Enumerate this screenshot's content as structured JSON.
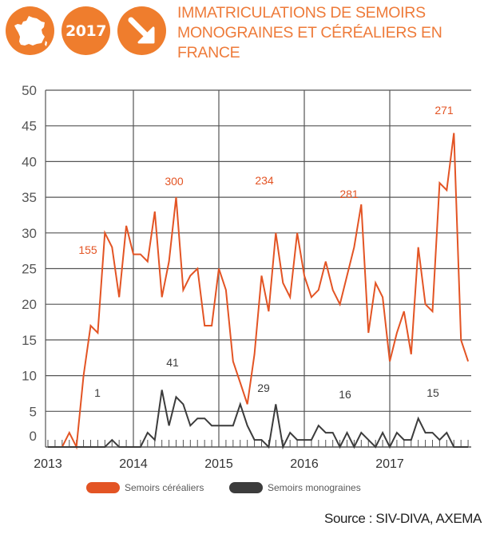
{
  "header": {
    "year_badge": "2017",
    "title": "IMMATRICULATIONS DE SEMOIRS MONOGRAINES ET CÉRÉALIERS EN FRANCE",
    "icons": [
      "france-map-icon",
      "trend-down-arrow-icon"
    ]
  },
  "colors": {
    "accent": "#ef7d2d",
    "cerealiers": "#e35424",
    "monograines": "#3c3c3c",
    "grid": "#555555"
  },
  "legend": {
    "items": [
      {
        "label": "Semoirs céréaliers",
        "color": "#e35424"
      },
      {
        "label": "Semoirs monograines",
        "color": "#3c3c3c"
      }
    ]
  },
  "source": "Source : SIV-DIVA, AXEMA",
  "chart_data": {
    "type": "line",
    "title": "IMMATRICULATIONS DE SEMOIRS MONOGRAINES ET CÉRÉALIERS EN FRANCE",
    "xlabel": "",
    "ylabel": "",
    "ylim": [
      0,
      50
    ],
    "yticks": [
      0,
      5,
      10,
      15,
      20,
      25,
      30,
      35,
      40,
      45,
      50
    ],
    "xticks": [
      "2013",
      "2014",
      "2015",
      "2016",
      "2017"
    ],
    "x_unit": "month",
    "x_start": "2013-01",
    "grid": true,
    "legend_position": "bottom",
    "series": [
      {
        "name": "Semoirs céréaliers",
        "color": "#e35424",
        "values": [
          0,
          0,
          0,
          2,
          0,
          10,
          17,
          16,
          30,
          28,
          21,
          31,
          27,
          27,
          26,
          33,
          21,
          26,
          35,
          22,
          24,
          25,
          17,
          17,
          25,
          22,
          12,
          9,
          6,
          13,
          24,
          19,
          30,
          23,
          21,
          30,
          24,
          21,
          22,
          26,
          22,
          20,
          24,
          28,
          34,
          16,
          23,
          21,
          12,
          16,
          19,
          13,
          28,
          20,
          19,
          37,
          36,
          44,
          15,
          12
        ]
      },
      {
        "name": "Semoirs monograines",
        "color": "#3c3c3c",
        "values": [
          0,
          0,
          0,
          0,
          0,
          0,
          0,
          0,
          0,
          1,
          0,
          0,
          0,
          0,
          2,
          1,
          8,
          3,
          7,
          6,
          3,
          4,
          4,
          3,
          3,
          3,
          3,
          6,
          3,
          1,
          1,
          0,
          6,
          0,
          2,
          1,
          1,
          1,
          3,
          2,
          2,
          0,
          2,
          0,
          2,
          1,
          0,
          2,
          0,
          2,
          1,
          1,
          4,
          2,
          2,
          1,
          2,
          0,
          0,
          0
        ]
      }
    ],
    "annotations": [
      {
        "year": "2013",
        "series": "Semoirs céréaliers",
        "text": "155"
      },
      {
        "year": "2014",
        "series": "Semoirs céréaliers",
        "text": "300"
      },
      {
        "year": "2015",
        "series": "Semoirs céréaliers",
        "text": "234"
      },
      {
        "year": "2016",
        "series": "Semoirs céréaliers",
        "text": "281"
      },
      {
        "year": "2017",
        "series": "Semoirs céréaliers",
        "text": "271"
      },
      {
        "year": "2013",
        "series": "Semoirs monograines",
        "text": "1"
      },
      {
        "year": "2014",
        "series": "Semoirs monograines",
        "text": "41"
      },
      {
        "year": "2015",
        "series": "Semoirs monograines",
        "text": "29"
      },
      {
        "year": "2016",
        "series": "Semoirs monograines",
        "text": "16"
      },
      {
        "year": "2017",
        "series": "Semoirs monograines",
        "text": "15"
      }
    ]
  }
}
